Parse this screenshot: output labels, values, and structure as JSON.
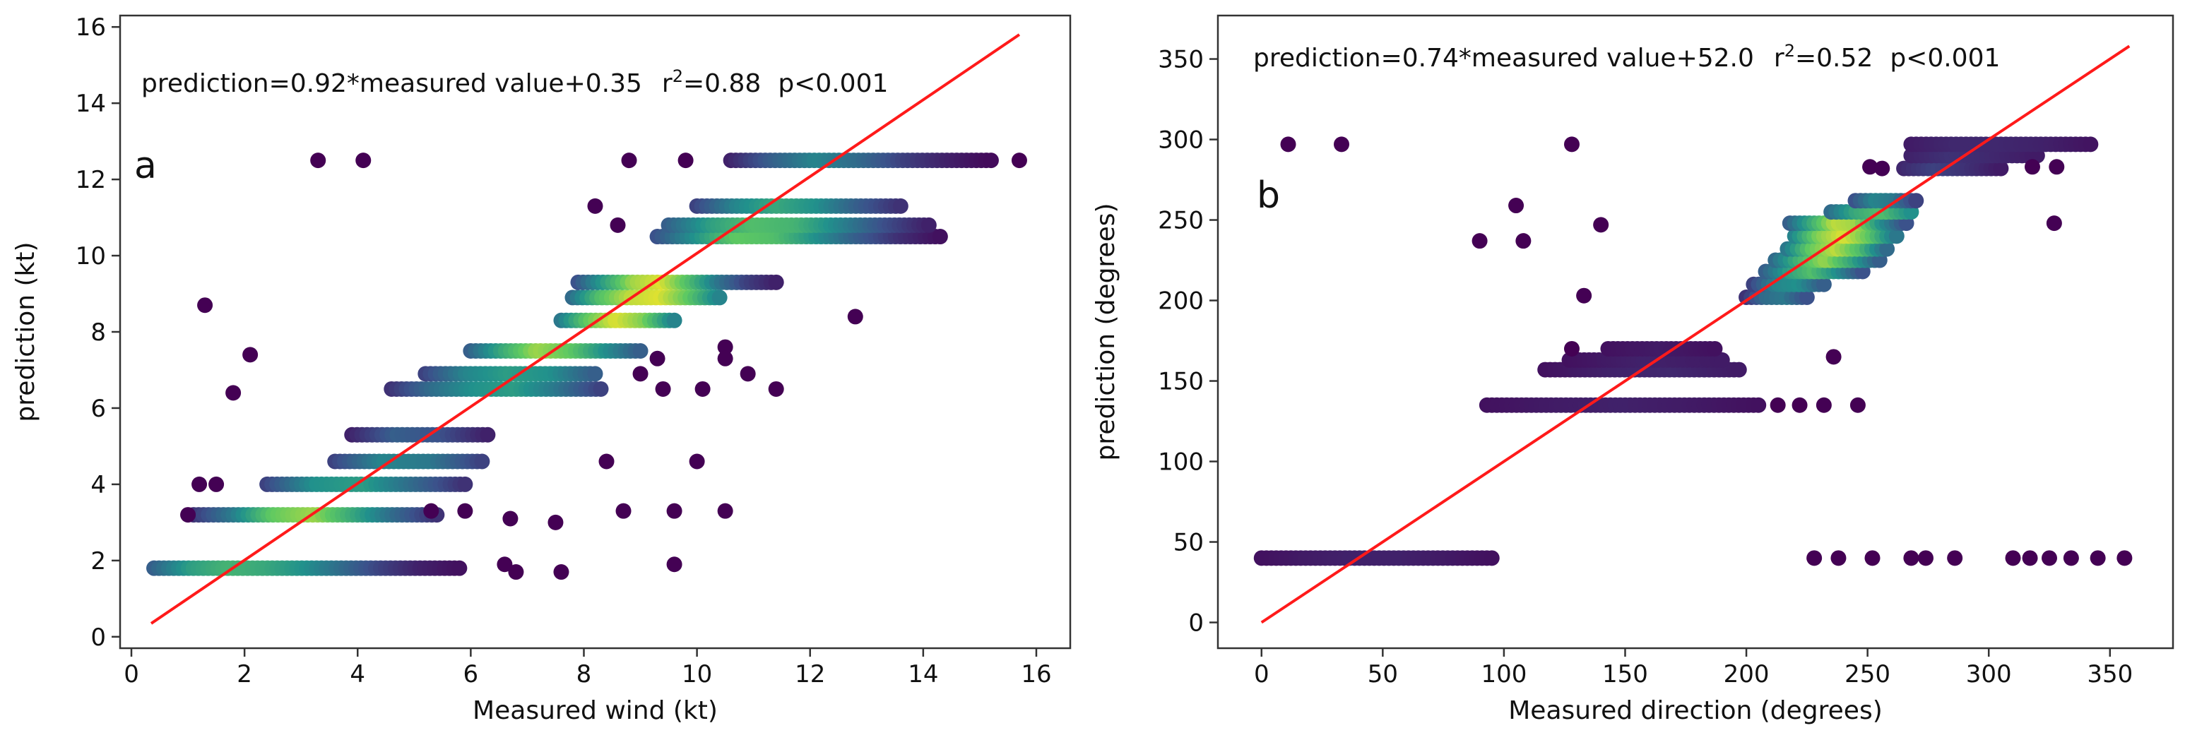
{
  "chart_data": [
    {
      "type": "scatter",
      "panel_label": "a",
      "title": "",
      "equation_text": "prediction=0.92*measured value+0.35",
      "r2_label": "r",
      "r2_sup": "2",
      "r2_value": "=0.88",
      "p_text": "p<0.001",
      "xlabel": "Measured wind (kt)",
      "ylabel": "prediction (kt)",
      "xlim": [
        -0.2,
        16.6
      ],
      "ylim": [
        -0.3,
        16.3
      ],
      "xticks": [
        0,
        2,
        4,
        6,
        8,
        10,
        12,
        14,
        16
      ],
      "yticks": [
        0,
        2,
        4,
        6,
        8,
        10,
        12,
        14,
        16
      ],
      "fit_line": {
        "x": [
          0.35,
          15.7
        ],
        "y": [
          0.35,
          15.8
        ],
        "color": "#ff1a1a"
      },
      "density_colormap": [
        "#440154",
        "#3b528b",
        "#21918c",
        "#5ec962",
        "#fde725"
      ],
      "bands": [
        {
          "y": 1.8,
          "x": [
            0.4,
            5.8
          ],
          "density": [
            0.3,
            0.55,
            0.65,
            0.6,
            0.5,
            0.35,
            0.2,
            0.1,
            0.05
          ]
        },
        {
          "y": 3.2,
          "x": [
            1.1,
            5.4
          ],
          "density": [
            0.15,
            0.4,
            0.75,
            0.85,
            0.6,
            0.35,
            0.15
          ]
        },
        {
          "y": 4.0,
          "x": [
            2.4,
            5.9
          ],
          "density": [
            0.2,
            0.5,
            0.55,
            0.35,
            0.15
          ]
        },
        {
          "y": 4.6,
          "x": [
            3.6,
            6.2
          ],
          "density": [
            0.2,
            0.45,
            0.4,
            0.2
          ]
        },
        {
          "y": 5.3,
          "x": [
            3.9,
            6.3
          ],
          "density": [
            0.1,
            0.3,
            0.25,
            0.1
          ]
        },
        {
          "y": 6.5,
          "x": [
            4.6,
            8.3
          ],
          "density": [
            0.15,
            0.35,
            0.5,
            0.55,
            0.4,
            0.2
          ]
        },
        {
          "y": 6.9,
          "x": [
            5.2,
            8.2
          ],
          "density": [
            0.2,
            0.45,
            0.55,
            0.5,
            0.3
          ]
        },
        {
          "y": 7.5,
          "x": [
            6.0,
            9.0
          ],
          "density": [
            0.3,
            0.6,
            0.85,
            0.75,
            0.5,
            0.3
          ]
        },
        {
          "y": 8.3,
          "x": [
            7.6,
            9.6
          ],
          "density": [
            0.4,
            0.75,
            0.95,
            0.8,
            0.45
          ]
        },
        {
          "y": 8.9,
          "x": [
            7.8,
            10.4
          ],
          "density": [
            0.35,
            0.7,
            0.9,
            0.95,
            0.75,
            0.45
          ]
        },
        {
          "y": 9.3,
          "x": [
            7.9,
            11.4
          ],
          "density": [
            0.25,
            0.55,
            0.85,
            0.95,
            0.7,
            0.4,
            0.2,
            0.1
          ]
        },
        {
          "y": 10.5,
          "x": [
            9.3,
            14.3
          ],
          "density": [
            0.25,
            0.5,
            0.75,
            0.7,
            0.5,
            0.3,
            0.15,
            0.05
          ]
        },
        {
          "y": 10.8,
          "x": [
            9.5,
            14.1
          ],
          "density": [
            0.3,
            0.55,
            0.7,
            0.65,
            0.45,
            0.25,
            0.1
          ]
        },
        {
          "y": 11.3,
          "x": [
            10.0,
            13.6
          ],
          "density": [
            0.2,
            0.45,
            0.6,
            0.5,
            0.3,
            0.15
          ]
        },
        {
          "y": 12.5,
          "x": [
            10.6,
            15.2
          ],
          "density": [
            0.1,
            0.3,
            0.45,
            0.35,
            0.2,
            0.1,
            0.03
          ]
        }
      ],
      "outliers": [
        [
          1.3,
          8.7
        ],
        [
          2.1,
          7.4
        ],
        [
          1.8,
          6.4
        ],
        [
          3.3,
          12.5
        ],
        [
          4.1,
          12.5
        ],
        [
          8.8,
          12.5
        ],
        [
          9.8,
          12.5
        ],
        [
          8.2,
          11.3
        ],
        [
          8.6,
          10.8
        ],
        [
          15.7,
          12.5
        ],
        [
          12.8,
          8.4
        ],
        [
          11.4,
          6.5
        ],
        [
          10.5,
          7.6
        ],
        [
          10.5,
          7.3
        ],
        [
          10.9,
          6.9
        ],
        [
          9.3,
          7.3
        ],
        [
          9.4,
          6.5
        ],
        [
          9.0,
          6.9
        ],
        [
          10.1,
          6.5
        ],
        [
          8.4,
          4.6
        ],
        [
          10.0,
          4.6
        ],
        [
          8.7,
          3.3
        ],
        [
          9.6,
          3.3
        ],
        [
          10.5,
          3.3
        ],
        [
          7.5,
          3.0
        ],
        [
          6.7,
          3.1
        ],
        [
          6.6,
          1.9
        ],
        [
          6.8,
          1.7
        ],
        [
          7.6,
          1.7
        ],
        [
          9.6,
          1.9
        ],
        [
          1.2,
          4.0
        ],
        [
          1.5,
          4.0
        ],
        [
          1.0,
          3.2
        ],
        [
          5.3,
          3.3
        ],
        [
          5.9,
          3.3
        ]
      ]
    },
    {
      "type": "scatter",
      "panel_label": "b",
      "title": "",
      "equation_text": "prediction=0.74*measured value+52.0",
      "r2_label": "r",
      "r2_sup": "2",
      "r2_value": "=0.52",
      "p_text": "p<0.001",
      "xlabel": "Measured direction (degrees)",
      "ylabel": "prediction (degrees)",
      "xlim": [
        -18,
        376
      ],
      "ylim": [
        -16,
        377
      ],
      "xticks": [
        0,
        50,
        100,
        150,
        200,
        250,
        300,
        350
      ],
      "yticks": [
        0,
        50,
        100,
        150,
        200,
        250,
        300,
        350
      ],
      "fit_line": {
        "x": [
          0,
          358
        ],
        "y": [
          0,
          358
        ],
        "color": "#ff1a1a"
      },
      "density_colormap": [
        "#440154",
        "#3b528b",
        "#21918c",
        "#5ec962",
        "#fde725"
      ],
      "bands": [
        {
          "y": 40,
          "x": [
            0,
            95
          ],
          "density": [
            0.05,
            0.08,
            0.1,
            0.1,
            0.08,
            0.05
          ]
        },
        {
          "y": 135,
          "x": [
            93,
            205
          ],
          "density": [
            0.05,
            0.08,
            0.1,
            0.08,
            0.05
          ]
        },
        {
          "y": 157,
          "x": [
            117,
            197
          ],
          "density": [
            0.05,
            0.1,
            0.12,
            0.08
          ]
        },
        {
          "y": 163,
          "x": [
            127,
            190
          ],
          "density": [
            0.05,
            0.1,
            0.08
          ]
        },
        {
          "y": 170,
          "x": [
            143,
            187
          ],
          "density": [
            0.05,
            0.08,
            0.05
          ]
        },
        {
          "y": 202,
          "x": [
            200,
            225
          ],
          "density": [
            0.15,
            0.35,
            0.4,
            0.25
          ]
        },
        {
          "y": 210,
          "x": [
            203,
            232
          ],
          "density": [
            0.2,
            0.45,
            0.5,
            0.3
          ]
        },
        {
          "y": 218,
          "x": [
            208,
            248
          ],
          "density": [
            0.3,
            0.55,
            0.7,
            0.5,
            0.25
          ]
        },
        {
          "y": 225,
          "x": [
            212,
            255
          ],
          "density": [
            0.35,
            0.65,
            0.85,
            0.6,
            0.3
          ]
        },
        {
          "y": 232,
          "x": [
            217,
            258
          ],
          "density": [
            0.4,
            0.75,
            0.9,
            0.7,
            0.35
          ]
        },
        {
          "y": 240,
          "x": [
            220,
            262
          ],
          "density": [
            0.45,
            0.8,
            0.95,
            0.75,
            0.4
          ]
        },
        {
          "y": 248,
          "x": [
            218,
            266
          ],
          "density": [
            0.3,
            0.6,
            0.9,
            0.85,
            0.5,
            0.25
          ]
        },
        {
          "y": 255,
          "x": [
            235,
            268
          ],
          "density": [
            0.35,
            0.6,
            0.7,
            0.5
          ]
        },
        {
          "y": 262,
          "x": [
            245,
            270
          ],
          "density": [
            0.25,
            0.45,
            0.4,
            0.2
          ]
        },
        {
          "y": 282,
          "x": [
            265,
            305
          ],
          "density": [
            0.12,
            0.2,
            0.15,
            0.08
          ]
        },
        {
          "y": 290,
          "x": [
            268,
            320
          ],
          "density": [
            0.1,
            0.15,
            0.12,
            0.08
          ]
        },
        {
          "y": 297,
          "x": [
            268,
            342
          ],
          "density": [
            0.08,
            0.12,
            0.12,
            0.1,
            0.06
          ]
        }
      ],
      "outliers": [
        [
          11,
          297
        ],
        [
          33,
          297
        ],
        [
          128,
          297
        ],
        [
          105,
          259
        ],
        [
          90,
          237
        ],
        [
          108,
          237
        ],
        [
          140,
          247
        ],
        [
          133,
          203
        ],
        [
          128,
          170
        ],
        [
          236,
          165
        ],
        [
          228,
          40
        ],
        [
          238,
          40
        ],
        [
          252,
          40
        ],
        [
          268,
          40
        ],
        [
          274,
          40
        ],
        [
          286,
          40
        ],
        [
          310,
          40
        ],
        [
          317,
          40
        ],
        [
          325,
          40
        ],
        [
          334,
          40
        ],
        [
          345,
          40
        ],
        [
          356,
          40
        ],
        [
          327,
          248
        ],
        [
          318,
          283
        ],
        [
          328,
          283
        ],
        [
          251,
          283
        ],
        [
          256,
          282
        ],
        [
          232,
          135
        ],
        [
          246,
          135
        ],
        [
          222,
          135
        ],
        [
          213,
          135
        ]
      ]
    }
  ]
}
